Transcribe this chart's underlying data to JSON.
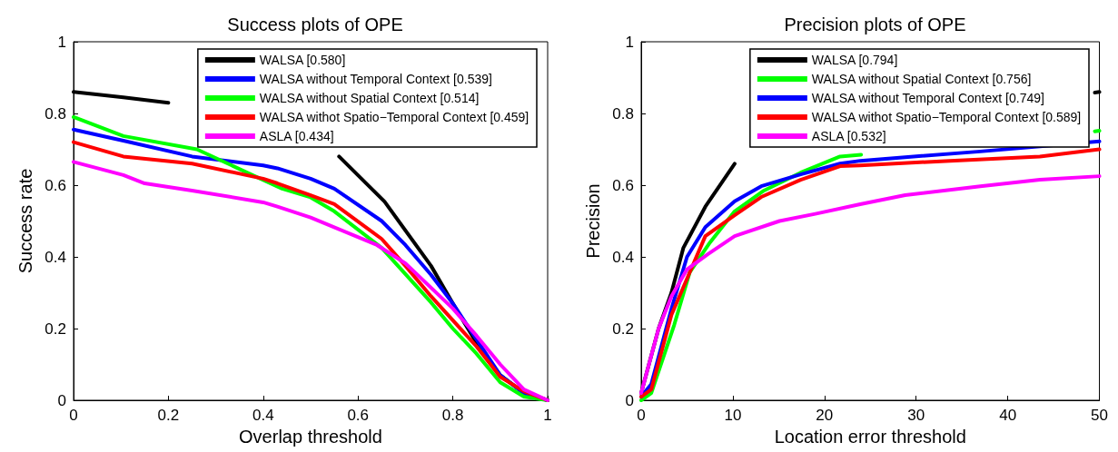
{
  "chart_data": [
    {
      "type": "line",
      "title": "Success plots of OPE",
      "xlabel": "Overlap threshold",
      "ylabel": "Success rate",
      "xlim": [
        0,
        1
      ],
      "ylim": [
        0,
        1
      ],
      "xticks": [
        0,
        0.2,
        0.4,
        0.6,
        0.8,
        1
      ],
      "yticks": [
        0,
        0.2,
        0.4,
        0.6,
        0.8,
        1
      ],
      "grid": false,
      "legend": "top right",
      "marker": "none",
      "line_style": "solid",
      "series": [
        {
          "name": "WALSA [0.580]",
          "color": "#000000",
          "x": [
            0,
            0.105,
            0.2,
            0.22,
            0.5,
            0.56,
            0.656,
            0.754,
            0.8,
            0.85,
            0.9,
            0.95,
            1
          ],
          "values": [
            0.86,
            0.845,
            0.83,
            null,
            null,
            0.68,
            0.554,
            0.375,
            0.27,
            0.16,
            0.07,
            0.02,
            0
          ]
        },
        {
          "name": "WALSA without Temporal Context [0.539]",
          "color": "#0000ff",
          "x": [
            0,
            0.105,
            0.25,
            0.4,
            0.43,
            0.5,
            0.55,
            0.65,
            0.7,
            0.754,
            0.8,
            0.85,
            0.9,
            0.95,
            1
          ],
          "values": [
            0.755,
            0.724,
            0.68,
            0.655,
            0.647,
            0.618,
            0.59,
            0.5,
            0.433,
            0.35,
            0.27,
            0.17,
            0.07,
            0.02,
            0
          ]
        },
        {
          "name": "WALSA without Spatial Context [0.514]",
          "color": "#00ff00",
          "x": [
            0,
            0.105,
            0.26,
            0.44,
            0.5,
            0.55,
            0.65,
            0.754,
            0.8,
            0.85,
            0.9,
            0.95,
            1
          ],
          "values": [
            0.79,
            0.737,
            0.7,
            0.59,
            0.566,
            0.527,
            0.425,
            0.273,
            0.2,
            0.13,
            0.05,
            0.01,
            0
          ]
        },
        {
          "name": "WALSA withot Spatio−Temporal Context [0.459]",
          "color": "#ff0000",
          "x": [
            0,
            0.105,
            0.25,
            0.4,
            0.43,
            0.5,
            0.55,
            0.65,
            0.7,
            0.754,
            0.8,
            0.85,
            0.9,
            0.95,
            1
          ],
          "values": [
            0.72,
            0.68,
            0.66,
            0.618,
            0.605,
            0.572,
            0.547,
            0.45,
            0.375,
            0.29,
            0.223,
            0.15,
            0.065,
            0.025,
            0
          ]
        },
        {
          "name": "ASLA [0.434]",
          "color": "#ff00ff",
          "x": [
            0,
            0.105,
            0.15,
            0.25,
            0.4,
            0.43,
            0.5,
            0.64,
            0.7,
            0.8,
            0.85,
            0.9,
            0.95,
            1
          ],
          "values": [
            0.665,
            0.628,
            0.605,
            0.585,
            0.552,
            0.54,
            0.51,
            0.433,
            0.382,
            0.256,
            0.18,
            0.1,
            0.03,
            0
          ]
        }
      ]
    },
    {
      "type": "line",
      "title": "Precision plots of OPE",
      "xlabel": "Location error threshold",
      "ylabel": "Precision",
      "xlim": [
        0,
        50
      ],
      "ylim": [
        0,
        1
      ],
      "xticks": [
        0,
        10,
        20,
        30,
        40,
        50
      ],
      "yticks": [
        0,
        0.2,
        0.4,
        0.6,
        0.8,
        1
      ],
      "grid": false,
      "legend": "top right",
      "marker": "none",
      "line_style": "solid",
      "series": [
        {
          "name": "WALSA [0.794]",
          "color": "#000000",
          "x": [
            0,
            1.9,
            3.3,
            4.6,
            7,
            10.2,
            11,
            49,
            49.5,
            50
          ],
          "values": [
            0.02,
            0.2,
            0.3,
            0.425,
            0.54,
            0.66,
            null,
            null,
            0.858,
            0.86
          ]
        },
        {
          "name": "WALSA without Spatial Context [0.756]",
          "color": "#00ff00",
          "x": [
            0,
            1.1,
            3.6,
            5.3,
            7.5,
            10.2,
            13.4,
            17.4,
            21.7,
            24,
            26,
            49,
            49.5,
            50
          ],
          "values": [
            0,
            0.02,
            0.21,
            0.357,
            0.44,
            0.527,
            0.585,
            0.635,
            0.68,
            0.685,
            null,
            null,
            0.75,
            0.752
          ]
        },
        {
          "name": "WALSA without Temporal Context [0.749]",
          "color": "#0000ff",
          "x": [
            0,
            1.1,
            3.3,
            5,
            7,
            10.2,
            13.1,
            17.4,
            21.7,
            23.9,
            28.8,
            37,
            50
          ],
          "values": [
            0.01,
            0.045,
            0.255,
            0.4,
            0.483,
            0.555,
            0.597,
            0.63,
            0.66,
            0.668,
            0.678,
            0.694,
            0.722
          ]
        },
        {
          "name": "WALSA withot Spatio−Temporal Context [0.589]",
          "color": "#ff0000",
          "x": [
            0,
            1.1,
            3.3,
            7,
            10.2,
            13.1,
            17.4,
            21.7,
            23.9,
            33.7,
            43.5,
            50
          ],
          "values": [
            0.01,
            0.03,
            0.238,
            0.458,
            0.516,
            0.567,
            0.615,
            0.653,
            0.655,
            0.668,
            0.68,
            0.7
          ]
        },
        {
          "name": "ASLA [0.532]",
          "color": "#ff00ff",
          "x": [
            0,
            1.9,
            3.3,
            5,
            7.3,
            10.2,
            15.1,
            19,
            23.9,
            28.8,
            37,
            43.5,
            50
          ],
          "values": [
            0.02,
            0.2,
            0.29,
            0.365,
            0.408,
            0.458,
            0.5,
            0.52,
            0.547,
            0.572,
            0.597,
            0.615,
            0.625
          ]
        }
      ]
    }
  ]
}
